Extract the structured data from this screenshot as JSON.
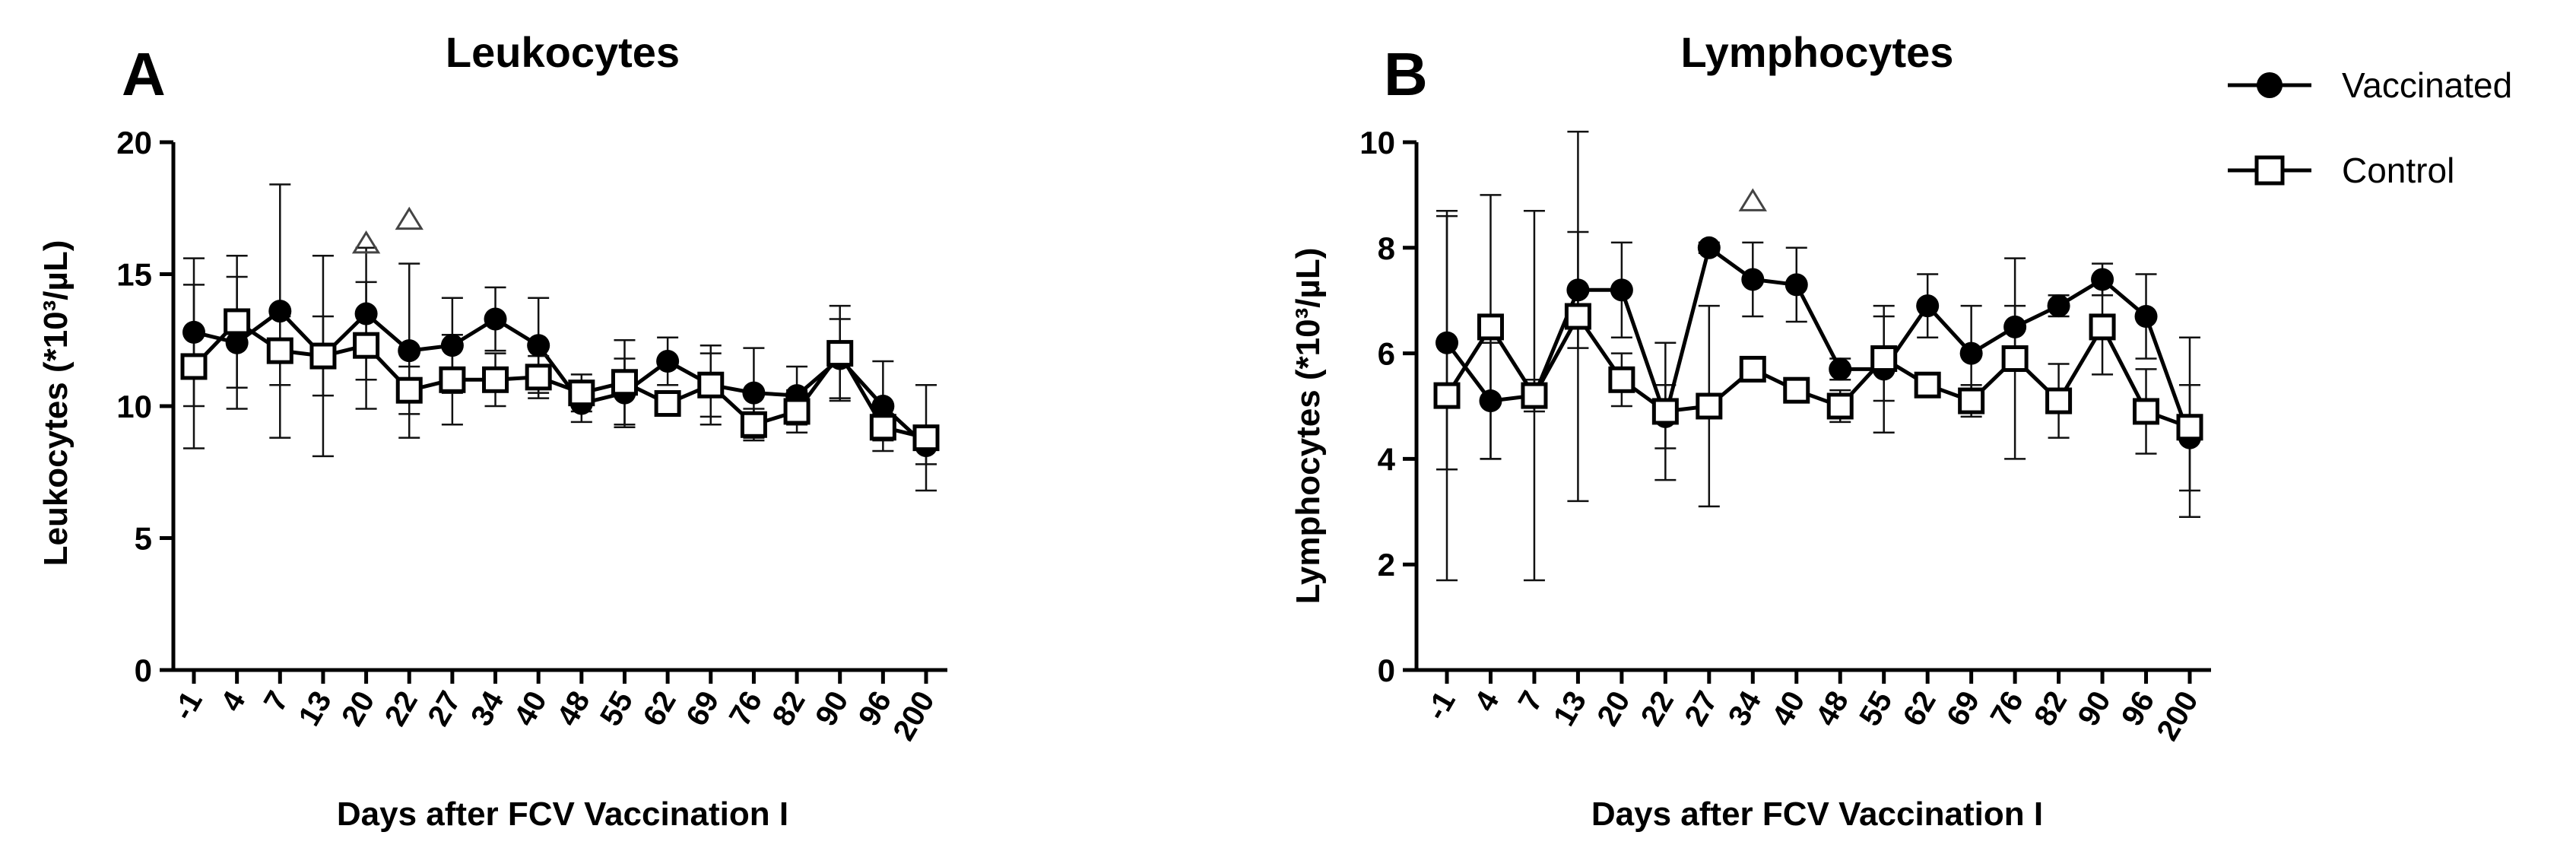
{
  "chart_data": [
    {
      "type": "line",
      "panel": "A",
      "title": "Leukocytes",
      "xlabel": "Days after FCV Vaccination I",
      "ylabel": "Leukocytes (*10³/µL)",
      "ylim": [
        0,
        20
      ],
      "yticks": [
        "0",
        "5",
        "10",
        "15",
        "20"
      ],
      "categories": [
        "-1",
        "4",
        "7",
        "13",
        "20",
        "22",
        "27",
        "34",
        "40",
        "48",
        "55",
        "62",
        "69",
        "76",
        "82",
        "90",
        "96",
        "200"
      ],
      "series": [
        {
          "name": "Vaccinated",
          "marker": "filled-circle",
          "values": [
            12.8,
            12.4,
            13.6,
            11.9,
            13.5,
            12.1,
            12.3,
            13.3,
            12.3,
            10.1,
            10.5,
            11.7,
            10.8,
            10.5,
            10.4,
            11.8,
            10.0,
            8.5
          ],
          "errors": [
            2.8,
            2.5,
            4.8,
            3.8,
            2.5,
            3.3,
            1.8,
            1.2,
            1.8,
            0.7,
            1.3,
            0.9,
            1.2,
            1.7,
            1.1,
            1.5,
            1.7,
            0.7
          ]
        },
        {
          "name": "Control",
          "marker": "open-square",
          "values": [
            11.5,
            13.2,
            12.1,
            11.9,
            12.3,
            10.6,
            11.0,
            11.0,
            11.1,
            10.5,
            10.9,
            10.1,
            10.8,
            9.3,
            9.8,
            12.0,
            9.2,
            8.8
          ],
          "errors": [
            3.1,
            2.5,
            1.3,
            1.5,
            2.4,
            0.9,
            1.7,
            1.0,
            0.8,
            0.7,
            1.6,
            0.4,
            1.5,
            0.6,
            0.8,
            1.8,
            0.5,
            2.0
          ]
        }
      ],
      "significance_markers": [
        {
          "category": "20",
          "value": 16.2,
          "symbol": "△"
        },
        {
          "category": "22",
          "value": 17.1,
          "symbol": "△"
        }
      ]
    },
    {
      "type": "line",
      "panel": "B",
      "title": "Lymphocytes",
      "xlabel": "Days after FCV Vaccination I",
      "ylabel": "Lymphocytes (*10³/µL)",
      "ylim": [
        0,
        10
      ],
      "yticks": [
        "0",
        "2",
        "4",
        "6",
        "8",
        "10"
      ],
      "categories": [
        "-1",
        "4",
        "7",
        "13",
        "20",
        "22",
        "27",
        "34",
        "40",
        "48",
        "55",
        "62",
        "69",
        "76",
        "82",
        "90",
        "96",
        "200"
      ],
      "series": [
        {
          "name": "Vaccinated",
          "marker": "filled-circle",
          "values": [
            6.2,
            5.1,
            5.2,
            7.2,
            7.2,
            4.8,
            8.0,
            7.4,
            7.3,
            5.7,
            5.7,
            6.9,
            6.0,
            6.5,
            6.9,
            7.4,
            6.7,
            4.4
          ],
          "errors": [
            2.4,
            1.1,
            0.3,
            1.1,
            0.9,
            0.6,
            0.1,
            0.7,
            0.7,
            0.2,
            1.2,
            0.6,
            0.9,
            0.4,
            0.2,
            0.3,
            0.8,
            1.0
          ]
        },
        {
          "name": "Control",
          "marker": "open-square",
          "values": [
            5.2,
            6.5,
            5.2,
            6.7,
            5.5,
            4.9,
            5.0,
            5.7,
            5.3,
            5.0,
            5.9,
            5.4,
            5.1,
            5.9,
            5.1,
            6.5,
            4.9,
            4.6
          ],
          "errors": [
            3.5,
            2.5,
            3.5,
            3.5,
            0.5,
            1.3,
            1.9,
            0.2,
            0.2,
            0.3,
            0.8,
            0.2,
            0.3,
            1.9,
            0.7,
            0.9,
            0.8,
            1.7
          ]
        }
      ],
      "significance_markers": [
        {
          "category": "34",
          "value": 8.9,
          "symbol": "△"
        }
      ]
    }
  ],
  "legend": {
    "position": "top-right",
    "entries": [
      {
        "label": "Vaccinated",
        "marker": "filled-circle"
      },
      {
        "label": "Control",
        "marker": "open-square"
      }
    ]
  },
  "colors": {
    "line": "#000000",
    "error_bar": "#111111",
    "significance": "#444444"
  }
}
